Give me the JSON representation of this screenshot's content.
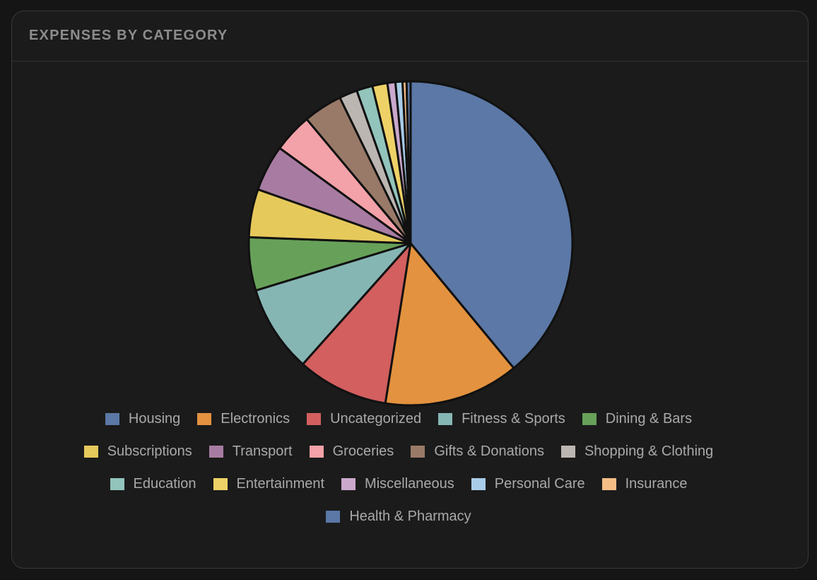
{
  "card": {
    "title": "EXPENSES BY CATEGORY"
  },
  "chart_data": {
    "type": "pie",
    "title": "EXPENSES BY CATEGORY",
    "legend_position": "bottom",
    "slice_border_color": "#111111",
    "categories": [
      "Housing",
      "Electronics",
      "Uncategorized",
      "Fitness & Sports",
      "Dining & Bars",
      "Subscriptions",
      "Transport",
      "Groceries",
      "Gifts & Donations",
      "Shopping & Clothing",
      "Education",
      "Entertainment",
      "Miscellaneous",
      "Personal Care",
      "Insurance",
      "Health & Pharmacy"
    ],
    "values": [
      39.0,
      13.5,
      9.1,
      8.7,
      5.3,
      4.8,
      4.6,
      3.9,
      3.9,
      1.8,
      1.6,
      1.5,
      0.8,
      0.7,
      0.4,
      0.4
    ],
    "colors": [
      "#5b78a6",
      "#e3923f",
      "#d35f5f",
      "#86b6b4",
      "#67a159",
      "#e6c95b",
      "#a87ca2",
      "#f2a2a8",
      "#997a68",
      "#bcb6b3",
      "#92c4bc",
      "#efd267",
      "#caa8cc",
      "#a9cde8",
      "#f5bd86",
      "#5b78a6"
    ]
  }
}
